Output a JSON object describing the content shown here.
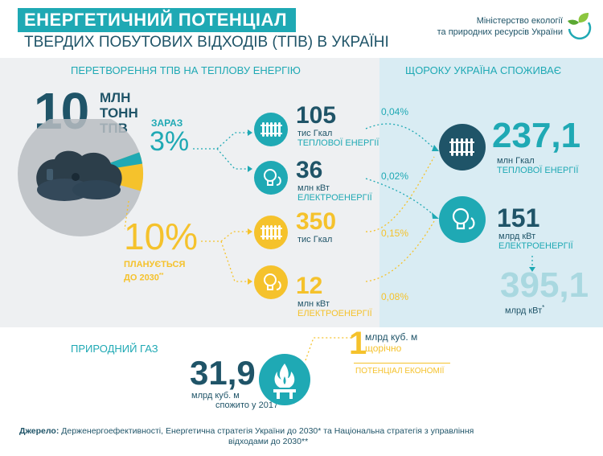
{
  "header": {
    "title_line1": "ЕНЕРГЕТИЧНИЙ ПОТЕНЦІАЛ",
    "title_line2": "ТВЕРДИХ ПОБУТОВИХ ВІДХОДІВ (ТПВ) В УКРАЇНІ",
    "ministry_line1": "Міністерство екології",
    "ministry_line2": "та природних ресурсів України"
  },
  "left_section": {
    "title": "ПЕРЕТВОРЕННЯ ТПВ НА ТЕПЛОВУ ЕНЕРГІЮ",
    "total_value": "10",
    "total_unit_1": "МЛН",
    "total_unit_2": "ТОНН",
    "total_unit_3": "ТПВ",
    "now_label": "ЗАРАЗ",
    "now_pct": "3%",
    "now_share": 3,
    "plan_pct": "10%",
    "plan_share": 10,
    "plan_label_1": "ПЛАНУЄТЬСЯ",
    "plan_label_2": "ДО 2030",
    "plan_footnote": "**",
    "rows": [
      {
        "value": "105",
        "unit_1": "тис Гкал",
        "unit_2": "ТЕПЛОВОЇ ЕНЕРГІЇ",
        "pct": "0,04%"
      },
      {
        "value": "36",
        "unit_1": "млн кВт",
        "unit_2": "ЕЛЕКТРОЕНЕРГІЇ",
        "pct": "0,02%"
      },
      {
        "value": "350",
        "unit_1": "тис Гкал",
        "unit_2": "",
        "pct": "0,15%"
      },
      {
        "value": "12",
        "unit_1": "млн кВт",
        "unit_2": "ЕЛЕКТРОЕНЕРГІЇ",
        "pct": "0,08%"
      }
    ]
  },
  "right_section": {
    "title": "ЩОРОКУ УКРАЇНА СПОЖИВАЄ",
    "heat_value": "237,1",
    "heat_unit_1": "млн Гкал",
    "heat_unit_2": "ТЕПЛОВОЇ ЕНЕРГІЇ",
    "elec_value": "151",
    "elec_unit_1": "млрд кВт",
    "elec_unit_2": "ЕЛЕКТРОЕНЕРГІЇ",
    "total_value": "395,1",
    "total_unit": "млрд кВт",
    "total_footnote": "*"
  },
  "gas_section": {
    "title": "ПРИРОДНИЙ ГАЗ",
    "consumed_value": "31,9",
    "consumed_unit": "млрд куб. м",
    "consumed_note": "спожито у 2017",
    "savings_value": "1",
    "savings_unit": "млрд куб. м",
    "savings_freq": "щорічно",
    "savings_label": "ПОТЕНЦІАЛ ЕКОНОМІЇ"
  },
  "source": {
    "label": "Джерело:",
    "text_line1": "Держенергоефективності, Енергетична стратегія України до 2030* та Національна стратегія з управління",
    "text_line2": "відходами до 2030**"
  },
  "colors": {
    "teal": "#1fa9b4",
    "dark_blue": "#1f5468",
    "yellow": "#f5c22c",
    "light_blue": "#d9ecf3",
    "light_gray": "#eef0f2"
  }
}
